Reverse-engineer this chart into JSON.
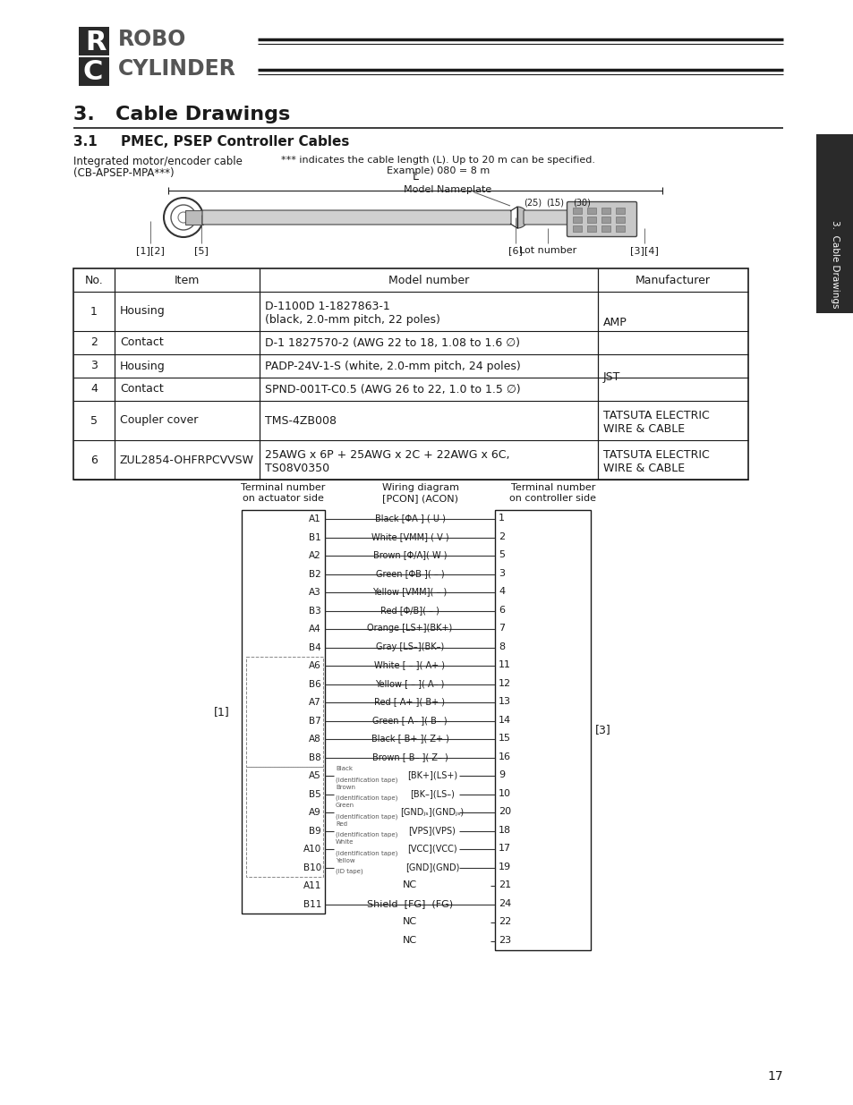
{
  "page_bg": "#ffffff",
  "table_rows": [
    [
      "1",
      "Housing",
      "D-1100D 1-1827863-1\n(black, 2.0-mm pitch, 22 poles)",
      "AMP",
      true
    ],
    [
      "2",
      "Contact",
      "D-1 1827570-2 (AWG 22 to 18, 1.08 to 1.6 ∅)",
      "",
      false
    ],
    [
      "3",
      "Housing",
      "PADP-24V-1-S (white, 2.0-mm pitch, 24 poles)",
      "JST",
      true
    ],
    [
      "4",
      "Contact",
      "SPND-001T-C0.5 (AWG 26 to 22, 1.0 to 1.5 ∅)",
      "",
      false
    ],
    [
      "5",
      "Coupler cover",
      "TMS-4ZB008",
      "TATSUTA ELECTRIC\nWIRE & CABLE",
      true
    ],
    [
      "6",
      "ZUL2854-OHFRPCVVSW",
      "25AWG x 6P + 25AWG x 2C + 22AWG x 6C,\nTS08V0350",
      "TATSUTA ELECTRIC\nWIRE & CABLE",
      true
    ]
  ],
  "wiring_rows": [
    [
      "A1",
      "Black [ΦA ] ( U )",
      "1",
      "normal"
    ],
    [
      "B1",
      "White [VMM] ( V )",
      "2",
      "normal"
    ],
    [
      "A2",
      "Brown [Φ/A]( W )",
      "5",
      "normal"
    ],
    [
      "B2",
      "Green [ΦB ]( – )",
      "3",
      "normal"
    ],
    [
      "A3",
      "Yellow [VMM]( – )",
      "4",
      "normal"
    ],
    [
      "B3",
      "Red [Φ/B]( – )",
      "6",
      "normal"
    ],
    [
      "A4",
      "Orange [LS+](BK+)",
      "7",
      "normal"
    ],
    [
      "B4",
      "Gray [LS–](BK–)",
      "8",
      "normal"
    ],
    [
      "A6",
      "White [ – ]( A+ )",
      "11",
      "encoder"
    ],
    [
      "B6",
      "Yellow [ – ]( A– )",
      "12",
      "encoder"
    ],
    [
      "A7",
      "Red [ A+ ]( B+ )",
      "13",
      "encoder"
    ],
    [
      "B7",
      "Green [ A– ]( B– )",
      "14",
      "encoder"
    ],
    [
      "A8",
      "Black [ B+ ]( Z+ )",
      "15",
      "encoder"
    ],
    [
      "B8",
      "Brown [ B– ]( Z– )",
      "16",
      "encoder"
    ],
    [
      "A5",
      "[BK+](LS+)",
      "9",
      "id_tape",
      "Black\n(identification tape)"
    ],
    [
      "B5",
      "[BK–](LS–)",
      "10",
      "id_tape",
      "Brown\n(identification tape)"
    ],
    [
      "A9",
      "[GNDⱼₛ](GNDⱼₛ)",
      "20",
      "id_tape",
      "Green\n(identification tape)"
    ],
    [
      "B9",
      "[VPS](VPS)",
      "18",
      "id_tape",
      "Red\n(identification tape)"
    ],
    [
      "A10",
      "[VCC](VCC)",
      "17",
      "id_tape",
      "White\n(identification tape)"
    ],
    [
      "B10",
      "[GND](GND)",
      "19",
      "id_tape",
      "Yellow\n(ID tape)"
    ],
    [
      "A11",
      "NC",
      "21",
      "nc"
    ],
    [
      "B11",
      "Shield  [FG]  (FG)",
      "24",
      "shield"
    ],
    [
      "",
      "NC",
      "22",
      "nc_out"
    ],
    [
      "",
      "NC",
      "23",
      "nc_out"
    ]
  ]
}
